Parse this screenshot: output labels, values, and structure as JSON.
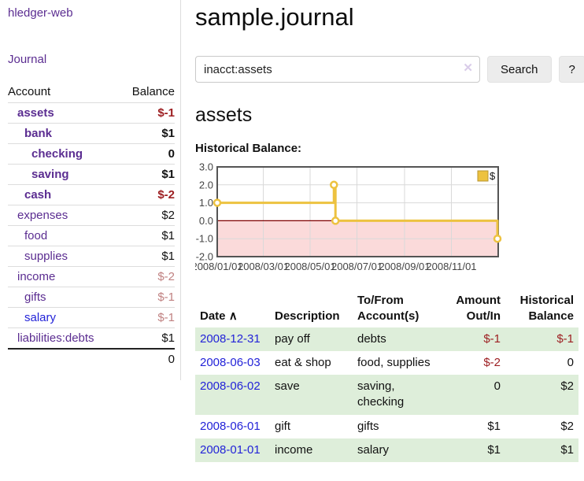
{
  "sidebar": {
    "app_title": "hledger-web",
    "journal_link": "Journal",
    "accounts_table": {
      "account_header": "Account",
      "balance_header": "Balance",
      "rows": [
        {
          "account": "assets",
          "balance": "$-1",
          "depth": 1,
          "bold": true,
          "balance_color": "negative"
        },
        {
          "account": "bank",
          "balance": "$1",
          "depth": 2,
          "bold": true,
          "balance_color": "normal"
        },
        {
          "account": "checking",
          "balance": "0",
          "depth": 3,
          "bold": true,
          "balance_color": "normal"
        },
        {
          "account": "saving",
          "balance": "$1",
          "depth": 3,
          "bold": true,
          "balance_color": "normal"
        },
        {
          "account": "cash",
          "balance": "$-2",
          "depth": 2,
          "bold": true,
          "balance_color": "negative"
        },
        {
          "account": "expenses",
          "balance": "$2",
          "depth": 1,
          "bold": false,
          "balance_color": "normal"
        },
        {
          "account": "food",
          "balance": "$1",
          "depth": 2,
          "bold": false,
          "balance_color": "normal"
        },
        {
          "account": "supplies",
          "balance": "$1",
          "depth": 2,
          "bold": false,
          "balance_color": "normal"
        },
        {
          "account": "income",
          "balance": "$-2",
          "depth": 1,
          "bold": false,
          "balance_color": "muted-negative"
        },
        {
          "account": "gifts",
          "balance": "$-1",
          "depth": 2,
          "bold": false,
          "balance_color": "muted-negative"
        },
        {
          "account": "salary",
          "balance": "$-1",
          "depth": 2,
          "bold": false,
          "balance_color": "muted-negative",
          "link_color": "blue"
        },
        {
          "account": "liabilities:debts",
          "balance": "$1",
          "depth": 1,
          "bold": false,
          "balance_color": "normal"
        }
      ],
      "total": "0"
    }
  },
  "main": {
    "title": "sample.journal",
    "search": {
      "value": "inacct:assets",
      "clear_icon": "✕",
      "search_button_label": "Search",
      "help_button_label": "?"
    },
    "account_heading": "assets",
    "chart_label": "Historical Balance:"
  },
  "chart_data": {
    "type": "line",
    "step": true,
    "title": "Historical Balance",
    "xlabel": "",
    "ylabel": "",
    "xlim": [
      "2008-01-01",
      "2009-01-01"
    ],
    "ylim": [
      -2.0,
      3.0
    ],
    "y_ticks": [
      "3.0",
      "2.0",
      "1.0",
      "0.0",
      "-1.0",
      "-2.0"
    ],
    "x_ticks": [
      "2008/01/01",
      "2008/03/01",
      "2008/05/01",
      "2008/07/01",
      "2008/09/01",
      "2008/11/01"
    ],
    "series": [
      {
        "name": "$",
        "color": "#edc240",
        "points": [
          [
            "2008-01-01",
            1
          ],
          [
            "2008-06-01",
            2
          ],
          [
            "2008-06-03",
            0
          ],
          [
            "2008-12-31",
            -1
          ]
        ]
      }
    ],
    "legend": {
      "label": "$",
      "position": "top-right"
    },
    "grid": true,
    "negative_region_fill": "#fbdada",
    "zero_line_color": "#800000",
    "border_color": "#545454",
    "gridline_color": "#d9d9d9"
  },
  "register_table": {
    "headers": {
      "date": "Date",
      "description": "Description",
      "accounts": "To/From Account(s)",
      "amount": "Amount Out/In",
      "balance": "Historical Balance"
    },
    "sort_icon": "∧",
    "rows": [
      {
        "date": "2008-12-31",
        "description": "pay off",
        "accounts": "debts",
        "amount": "$-1",
        "balance": "$-1"
      },
      {
        "date": "2008-06-03",
        "description": "eat & shop",
        "accounts": "food, supplies",
        "amount": "$-2",
        "balance": "0"
      },
      {
        "date": "2008-06-02",
        "description": "save",
        "accounts": "saving, checking",
        "amount": "0",
        "balance": "$2"
      },
      {
        "date": "2008-06-01",
        "description": "gift",
        "accounts": "gifts",
        "amount": "$1",
        "balance": "$2"
      },
      {
        "date": "2008-01-01",
        "description": "income",
        "accounts": "salary",
        "amount": "$1",
        "balance": "$1"
      }
    ]
  },
  "colors": {
    "link_purple": "#5b2d91",
    "link_blue": "#2323d8",
    "negative": "#9d1f22",
    "muted_negative": "#c08181",
    "row_stripe_green": "#deeeda",
    "series_gold": "#edc240"
  }
}
